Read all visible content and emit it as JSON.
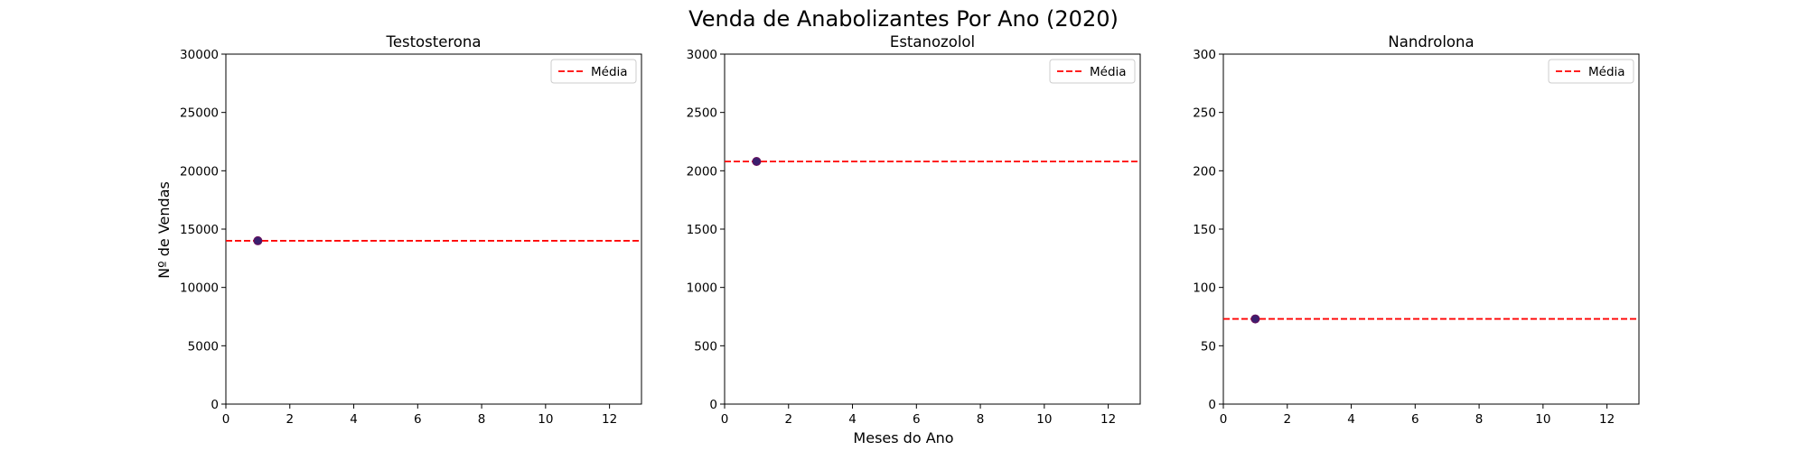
{
  "figure": {
    "title": "Venda de Anabolizantes Por Ano (2020)",
    "xlabel": "Meses do Ano",
    "ylabel": "Nº de Vendas"
  },
  "chart_data": [
    {
      "type": "scatter",
      "title": "Testosterona",
      "x": [
        1
      ],
      "y": [
        14000
      ],
      "mean": 14000,
      "legend": [
        "Média"
      ],
      "legend_position": "top-right",
      "xlim": [
        0,
        13
      ],
      "ylim": [
        0,
        30000
      ],
      "xticks": [
        0,
        2,
        4,
        6,
        8,
        10,
        12
      ],
      "yticks": [
        0,
        5000,
        10000,
        15000,
        20000,
        25000,
        30000
      ],
      "point_color": "#3b1f6e",
      "mean_color": "#ff0000",
      "grid": false
    },
    {
      "type": "scatter",
      "title": "Estanozolol",
      "x": [
        1
      ],
      "y": [
        2080
      ],
      "mean": 2080,
      "legend": [
        "Média"
      ],
      "legend_position": "top-right",
      "xlim": [
        0,
        13
      ],
      "ylim": [
        0,
        3000
      ],
      "xticks": [
        0,
        2,
        4,
        6,
        8,
        10,
        12
      ],
      "yticks": [
        0,
        500,
        1000,
        1500,
        2000,
        2500,
        3000
      ],
      "point_color": "#3b1f6e",
      "mean_color": "#ff0000",
      "grid": false
    },
    {
      "type": "scatter",
      "title": "Nandrolona",
      "x": [
        1
      ],
      "y": [
        73
      ],
      "mean": 73,
      "legend": [
        "Média"
      ],
      "legend_position": "top-right",
      "xlim": [
        0,
        13
      ],
      "ylim": [
        0,
        300
      ],
      "xticks": [
        0,
        2,
        4,
        6,
        8,
        10,
        12
      ],
      "yticks": [
        0,
        50,
        100,
        150,
        200,
        250,
        300
      ],
      "point_color": "#3b1f6e",
      "mean_color": "#ff0000",
      "grid": false
    }
  ]
}
